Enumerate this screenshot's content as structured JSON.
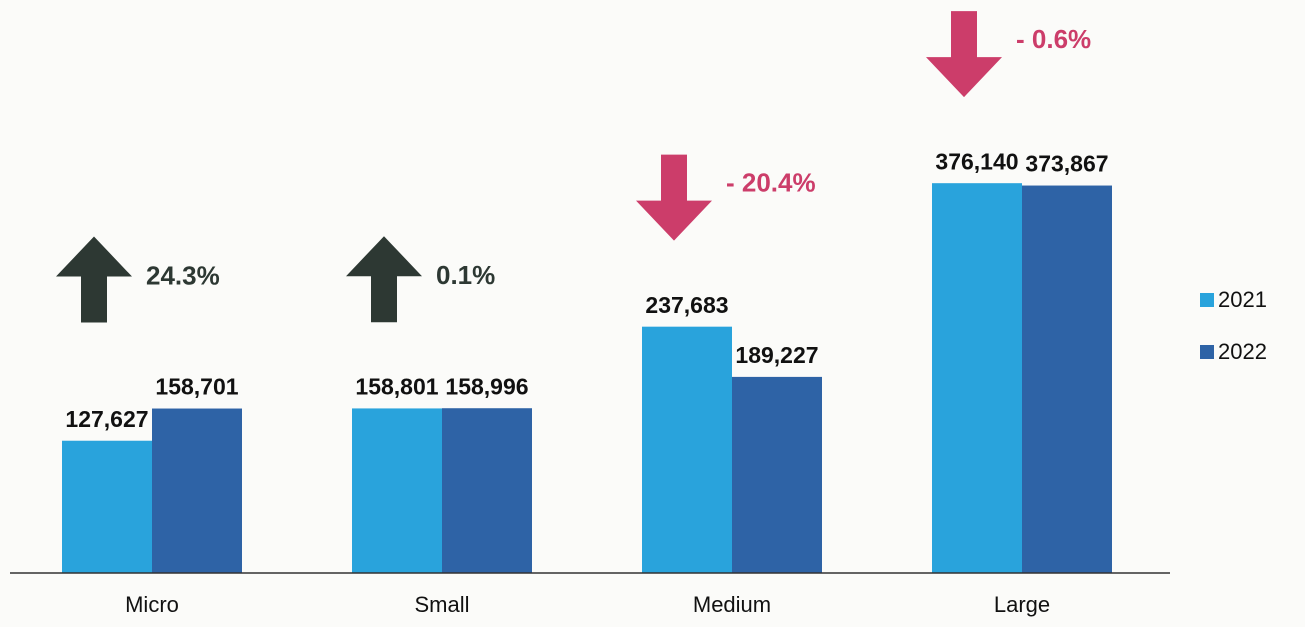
{
  "chart_data": {
    "type": "bar",
    "categories": [
      "Micro",
      "Small",
      "Medium",
      "Large"
    ],
    "series": [
      {
        "name": "2021",
        "color": "#29a3dc",
        "values": [
          127627,
          158801,
          237683,
          376140
        ],
        "value_labels": [
          "127,627",
          "158,801",
          "237,683",
          "376,140"
        ]
      },
      {
        "name": "2022",
        "color": "#2e63a6",
        "values": [
          158701,
          158996,
          189227,
          373867
        ],
        "value_labels": [
          "158,701",
          "158,996",
          "189,227",
          "373,867"
        ]
      }
    ],
    "ylim": [
      0,
      550000
    ],
    "legend": "right",
    "annotations": [
      {
        "label": "24.3%",
        "direction": "up",
        "color": "#2d3833"
      },
      {
        "label": "0.1%",
        "direction": "up",
        "color": "#2d3833"
      },
      {
        "label": "- 20.4%",
        "direction": "down",
        "color": "#cc3d6a"
      },
      {
        "label": "- 0.6%",
        "direction": "down",
        "color": "#cc3d6a"
      }
    ]
  }
}
